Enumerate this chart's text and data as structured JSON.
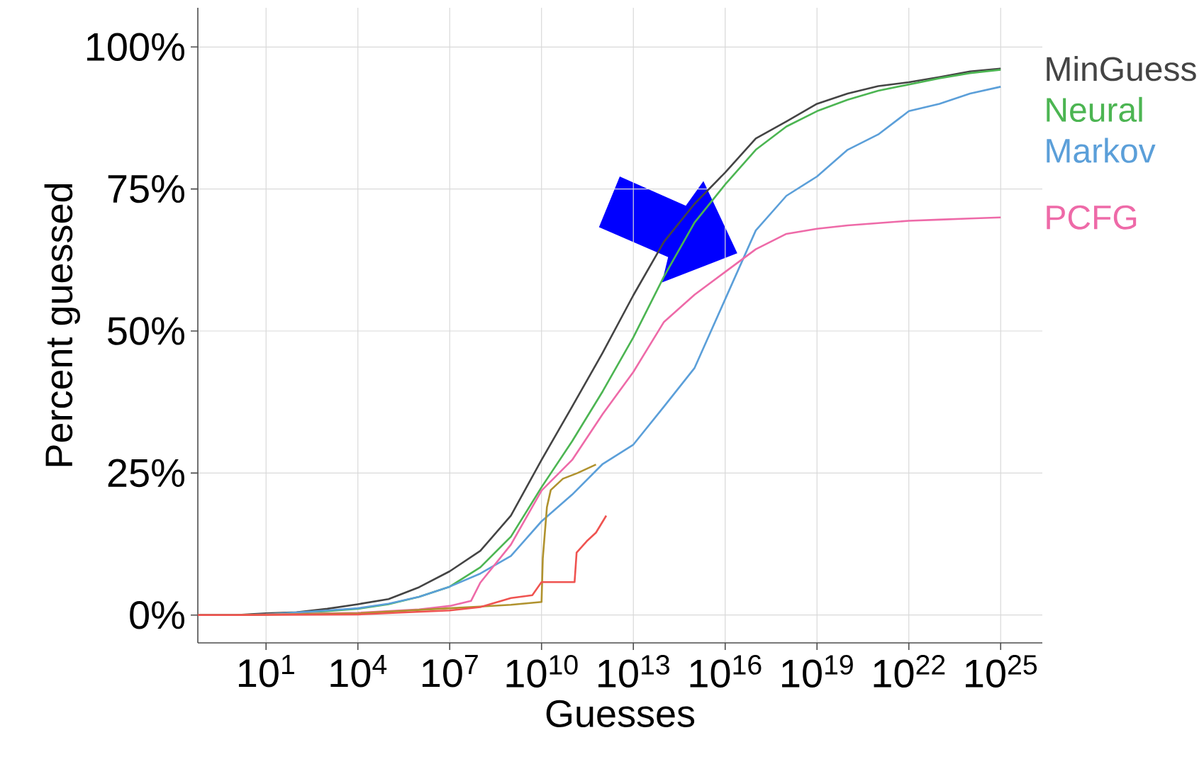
{
  "chart_data": {
    "type": "line",
    "xlabel": "Guesses",
    "ylabel": "Percent guessed",
    "log": "x",
    "grid": true,
    "xlim": [
      0.059,
      2.3e+26
    ],
    "ylim": [
      -4.9,
      106.9
    ],
    "xticks": [
      {
        "value": 10.0,
        "label": "10$^{1}$"
      },
      {
        "value": 10000.0,
        "label": "10$^{4}$"
      },
      {
        "value": 10000000.0,
        "label": "10$^{7}$"
      },
      {
        "value": 10000000000.0,
        "label": "10$^{10}$"
      },
      {
        "value": 10000000000000.0,
        "label": "10$^{13}$"
      },
      {
        "value": 1e+16,
        "label": "10$^{16}$"
      },
      {
        "value": 1e+19,
        "label": "10$^{19}$"
      },
      {
        "value": 1e+22,
        "label": "10$^{22}$"
      },
      {
        "value": 1e+25,
        "label": "10$^{25}$"
      }
    ],
    "yticks": [
      {
        "value": 0,
        "label": "0%"
      },
      {
        "value": 25,
        "label": "25%"
      },
      {
        "value": 50,
        "label": "50%"
      },
      {
        "value": 75,
        "label": "75%"
      },
      {
        "value": 100,
        "label": "100%"
      }
    ],
    "series": [
      {
        "name": "MinGuess",
        "color": "#444444",
        "x": [
          0.059,
          1,
          10,
          100,
          1000.0,
          10000.0,
          100000.0,
          1000000.0,
          10000000.0,
          100000000.0,
          1000000000.0,
          10000000000.0,
          100000000000.0,
          1000000000000.0,
          10000000000000.0,
          100000000000000.0,
          1000000000000000.0,
          1e+16,
          1e+17,
          1e+18,
          1e+19,
          1e+20,
          1e+21,
          1e+22,
          1e+23,
          1e+24,
          1e+25
        ],
        "values": [
          0,
          0,
          0.3,
          0.5,
          1.1,
          1.9,
          2.8,
          4.9,
          7.7,
          11.3,
          17.5,
          27.3,
          36.7,
          46.2,
          56.3,
          65.7,
          72.4,
          77.9,
          83.9,
          86.9,
          90.0,
          91.8,
          93.1,
          93.8,
          94.7,
          95.7,
          96.2
        ]
      },
      {
        "name": "Neural",
        "color": "#4cb552",
        "x": [
          10,
          1000.0,
          10000.0,
          100000.0,
          1000000.0,
          10000000.0,
          100000000.0,
          1000000000.0,
          10000000000.0,
          100000000000.0,
          1000000000000.0,
          10000000000000.0,
          100000000000000.0,
          1000000000000000.0,
          1e+16,
          1e+17,
          1e+18,
          1e+19,
          1e+20,
          1e+21,
          1e+22,
          1e+23,
          1e+24,
          1e+25
        ],
        "values": [
          0.1,
          0.7,
          1.1,
          1.9,
          3.2,
          5.0,
          8.4,
          13.8,
          22.5,
          30.6,
          39.4,
          48.9,
          59.6,
          69.1,
          75.8,
          81.9,
          86.0,
          88.7,
          90.7,
          92.3,
          93.4,
          94.5,
          95.4,
          96.0
        ]
      },
      {
        "name": "Markov",
        "color": "#5b9fd9",
        "x": [
          0.059,
          1,
          10,
          1000.0,
          10000.0,
          100000.0,
          1000000.0,
          10000000.0,
          100000000.0,
          1000000000.0,
          10000000000.0,
          100000000000.0,
          1000000000000.0,
          10000000000000.0,
          100000000000000.0,
          1000000000000000.0,
          1e+16,
          1e+17,
          1e+18,
          1e+19,
          1e+20,
          1e+21,
          1e+22,
          1e+23,
          1e+24,
          1e+25
        ],
        "values": [
          0,
          0,
          0.1,
          0.8,
          1.2,
          2.0,
          3.2,
          5.0,
          7.3,
          10.4,
          16.5,
          21.2,
          26.6,
          30.0,
          36.7,
          43.5,
          55.6,
          67.7,
          73.8,
          77.2,
          81.9,
          84.6,
          88.7,
          90.0,
          91.8,
          93.0
        ]
      },
      {
        "name": "PCFG",
        "color": "#ee6aa8",
        "x": [
          0.059,
          1,
          10000.0,
          1000000.0,
          10000000.0,
          50000000.0,
          100000000.0,
          1000000000.0,
          10000000000.0,
          100000000000.0,
          1000000000000.0,
          10000000000000.0,
          100000000000000.0,
          1000000000000000.0,
          1e+16,
          1e+17,
          1e+18,
          1e+19,
          1e+20,
          1e+21,
          1e+22,
          1e+23,
          1e+24,
          1e+25
        ],
        "values": [
          0,
          0,
          0.4,
          1.0,
          1.6,
          2.5,
          5.7,
          12.4,
          21.9,
          27.3,
          35.4,
          42.8,
          51.6,
          56.4,
          60.4,
          64.4,
          67.1,
          68.0,
          68.6,
          69.0,
          69.4,
          69.6,
          69.8,
          70.0
        ]
      },
      {
        "color": "#b0922e",
        "x": [
          0.059,
          1,
          10000.0,
          10000000.0,
          100000000.0,
          1000000000.0,
          10000000000.0,
          11000000000.0,
          15000000000.0,
          20000000000.0,
          50000000000.0,
          150000000000.0,
          600000000000.0
        ],
        "values": [
          0,
          0,
          0.3,
          1.2,
          1.5,
          1.8,
          2.3,
          10,
          19,
          22,
          24,
          25,
          26.5
        ]
      },
      {
        "color": "#ef5350",
        "x": [
          0.059,
          1,
          10000.0,
          10000000.0,
          100000000.0,
          1000000000.0,
          5000000000.0,
          10000000000.0,
          120000000000.0,
          140000000000.0,
          300000000000.0,
          600000000000.0,
          1300000000000.0
        ],
        "values": [
          0,
          0,
          0.1,
          0.8,
          1.4,
          3.0,
          3.5,
          5.8,
          5.8,
          11,
          13,
          14.5,
          17.5
        ]
      }
    ]
  }
}
